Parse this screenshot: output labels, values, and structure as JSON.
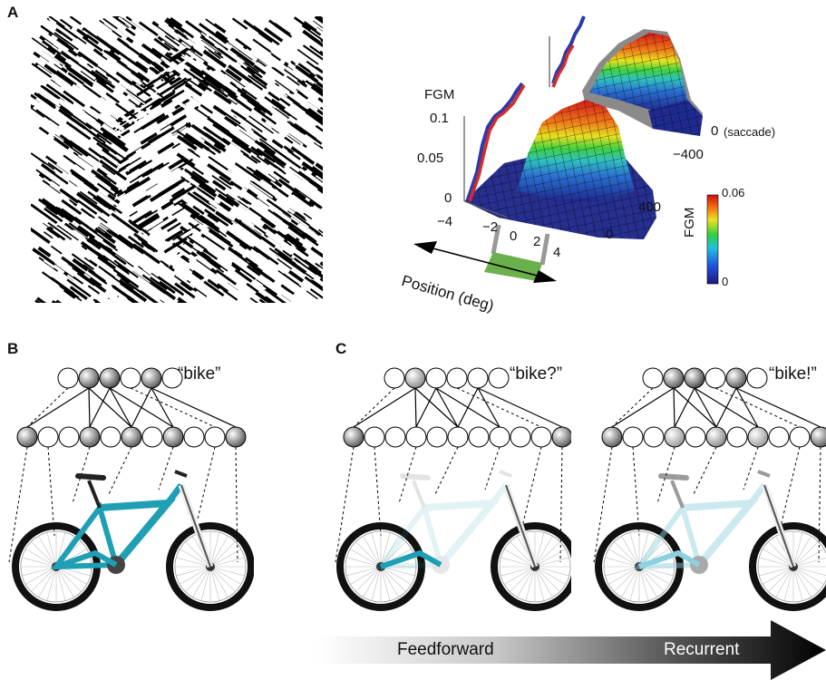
{
  "panels": {
    "a": "A",
    "b": "B",
    "c": "C"
  },
  "surface_plot": {
    "z_label": "FGM",
    "z_ticks": [
      "0.1",
      "0.05",
      "0"
    ],
    "x_ticks": [
      "−4",
      "−2",
      "0",
      "2",
      "4"
    ],
    "x_label": "Position (deg)",
    "time_ticks": [
      "400",
      "0"
    ],
    "time_ticks_back": [
      "0",
      "−400"
    ],
    "time_note": "(saccade)",
    "colorbar": {
      "label": "FGM",
      "max": "0.06",
      "min": "0"
    },
    "colors": {
      "low": "#2a2a8c",
      "mid": "#32c832",
      "high": "#e01818",
      "figure": "#6ab04c",
      "trace_red": "#d42a2a",
      "trace_blue": "#2d3aa8"
    }
  },
  "networks": {
    "b_word": "“bike”",
    "c1_word": "“bike?”",
    "c2_word": "“bike!”",
    "bike_color": "#1e9fb4"
  },
  "arrow": {
    "left": "Feedforward",
    "right": "Recurrent"
  }
}
